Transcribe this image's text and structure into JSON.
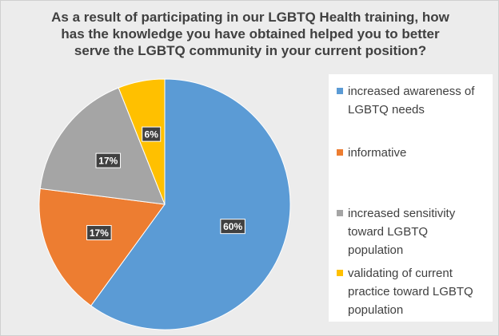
{
  "chart_data": {
    "type": "pie",
    "title_lines": [
      "As a result of participating in our LGBTQ Health training, how",
      "has the knowledge you have obtained helped you to better",
      "serve the LGBTQ community in your current position?"
    ],
    "categories": [
      "increased awareness of LGBTQ needs",
      "informative",
      "increased sensitivity toward LGBTQ population",
      "validating of current practice toward LGBTQ population"
    ],
    "values": [
      60,
      17,
      17,
      6
    ],
    "data_labels": [
      "60%",
      "17%",
      "17%",
      "6%"
    ],
    "colors": [
      "#5b9bd5",
      "#ed7d31",
      "#a5a5a5",
      "#ffc000"
    ],
    "legend_position": "right",
    "start_angle_deg": 0,
    "direction": "clockwise"
  },
  "legend": {
    "items": [
      {
        "lines": [
          "increased awareness of",
          "LGBTQ needs"
        ]
      },
      {
        "lines": [
          "informative"
        ]
      },
      {
        "lines": [
          "increased sensitivity",
          "toward LGBTQ",
          "population"
        ]
      },
      {
        "lines": [
          "validating of current",
          "practice toward LGBTQ",
          "population"
        ]
      }
    ]
  }
}
